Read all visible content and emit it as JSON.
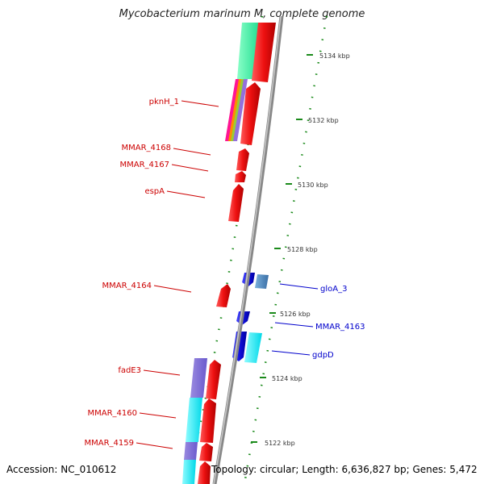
{
  "title": "Mycobacterium marinum M, complete genome",
  "footer": {
    "accession": "Accession: NC_010612",
    "summary": "Topology: circular; Length: 6,636,827 bp; Genes: 5,472"
  },
  "colors": {
    "forward_gene": "#ee1111",
    "reverse_gene": "#1111dd",
    "forward_label": "#cc0000",
    "reverse_label": "#0000cc",
    "backbone": "#888888",
    "tick": "#1a8a1a"
  },
  "scale": {
    "unit": "kbp",
    "labels": [
      "5134 kbp",
      "5132 kbp",
      "5130 kbp",
      "5128 kbp",
      "5126 kbp",
      "5124 kbp",
      "5122 kbp"
    ]
  },
  "genes": {
    "forward": [
      "pknH_1",
      "MMAR_4168",
      "MMAR_4167",
      "espA",
      "MMAR_4164",
      "fadE3",
      "MMAR_4160",
      "MMAR_4159"
    ],
    "reverse": [
      "gloA_3",
      "MMAR_4163",
      "gdpD"
    ]
  }
}
